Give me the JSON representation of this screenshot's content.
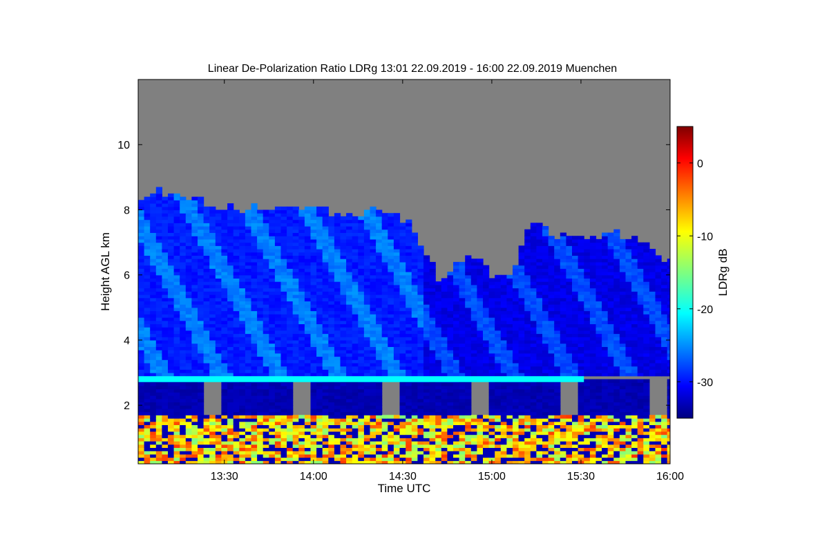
{
  "chart_data": {
    "type": "heatmap",
    "title": "Linear De-Polarization Ratio LDRg   13:01 22.09.2019 - 16:00 22.09.2019 Muenchen",
    "xlabel": "Time UTC",
    "ylabel": "Height AGL km",
    "colorbar_label": "LDRg dB",
    "x_ticks": [
      "13:30",
      "14:00",
      "14:30",
      "15:00",
      "15:30",
      "16:00"
    ],
    "x_tick_minutes": [
      29,
      59,
      89,
      119,
      149,
      179
    ],
    "x_range_minutes": [
      0,
      179
    ],
    "y_ticks": [
      "2",
      "4",
      "6",
      "8",
      "10"
    ],
    "y_tick_values": [
      2,
      4,
      6,
      8,
      10
    ],
    "y_range": [
      0.2,
      12.0
    ],
    "colorbar_ticks": [
      "0",
      "-10",
      "-20",
      "-30"
    ],
    "colorbar_tick_values": [
      0,
      -10,
      -20,
      -30
    ],
    "colorbar_range": [
      -35,
      5
    ],
    "colormap": "jet",
    "no_data_color": "#808080",
    "cirrus_top_profile": {
      "minutes": [
        0,
        5,
        10,
        20,
        30,
        40,
        50,
        60,
        70,
        80,
        90,
        100,
        110,
        115,
        118,
        125,
        130,
        140,
        150,
        160,
        170,
        179
      ],
      "top_km": [
        8.4,
        8.5,
        8.4,
        8.2,
        8.0,
        8.0,
        8.1,
        8.0,
        7.8,
        7.9,
        7.6,
        5.8,
        6.6,
        6.3,
        6.0,
        6.0,
        7.5,
        7.2,
        7.1,
        7.2,
        7.0,
        6.2
      ]
    },
    "cirrus_ldr_db": -29,
    "cirrus_band_ldr_db": -24,
    "melting_layer_km": 2.8,
    "melting_layer_ldr_db": -20,
    "rain_ldr_db": -33,
    "clutter_ldr_db_range": [
      -15,
      -2
    ],
    "clutter_top_km": 1.7
  }
}
